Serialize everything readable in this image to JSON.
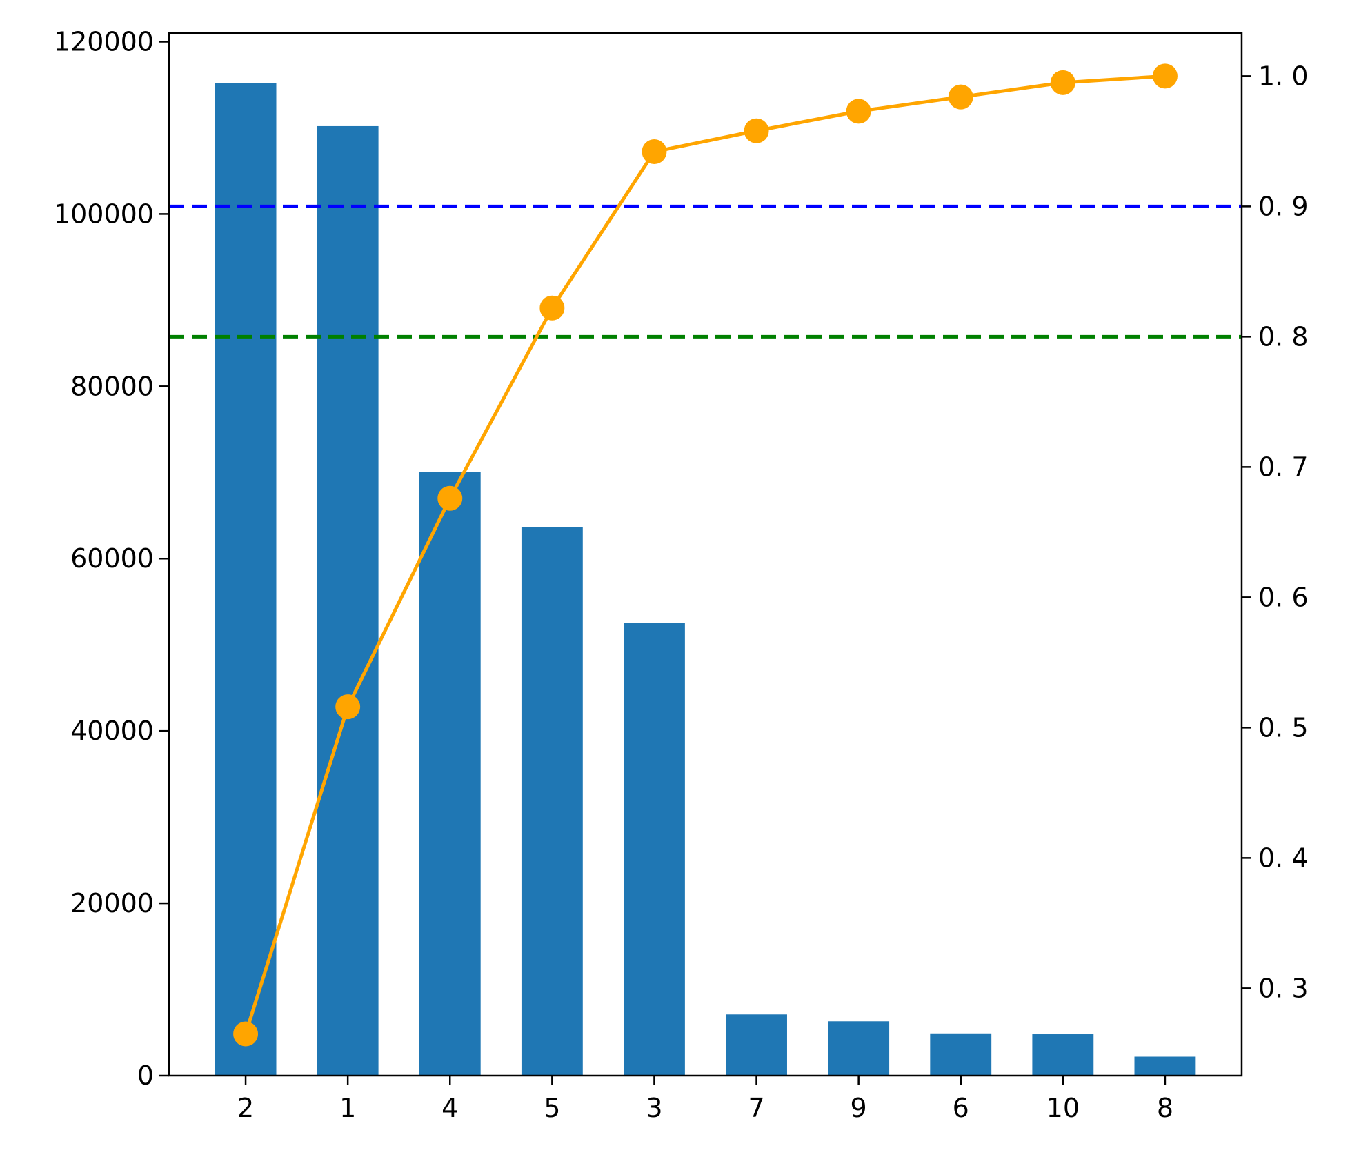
{
  "chart_data": {
    "type": "bar",
    "title": "",
    "xlabel": "",
    "ylabel": "",
    "categories": [
      "2",
      "1",
      "4",
      "5",
      "3",
      "7",
      "9",
      "6",
      "10",
      "8"
    ],
    "values": [
      115200,
      110200,
      70100,
      63700,
      52500,
      7100,
      6300,
      4900,
      4800,
      2200
    ],
    "ylim": [
      0,
      121000
    ],
    "yticks": [
      0,
      20000,
      40000,
      60000,
      80000,
      100000,
      120000
    ],
    "bar_color": "#1f77b4",
    "line": {
      "type": "line",
      "values": [
        0.265,
        0.516,
        0.676,
        0.822,
        0.942,
        0.958,
        0.973,
        0.984,
        0.995,
        1.0
      ],
      "color": "#ffa500",
      "ylim": [
        0.233,
        1.033
      ],
      "yticks": [
        0.3,
        0.4,
        0.5,
        0.6,
        0.7,
        0.8,
        0.9,
        1.0
      ],
      "ytick_labels": [
        "0. 3",
        "0. 4",
        "0. 5",
        "0. 6",
        "0. 7",
        "0. 8",
        "0. 9",
        "1. 0"
      ]
    },
    "reference_lines": [
      {
        "axis": "right",
        "value": 0.9,
        "color": "#0000ff",
        "style": "dashed"
      },
      {
        "axis": "right",
        "value": 0.8,
        "color": "#008000",
        "style": "dashed"
      }
    ],
    "grid": false,
    "legend": "none"
  }
}
